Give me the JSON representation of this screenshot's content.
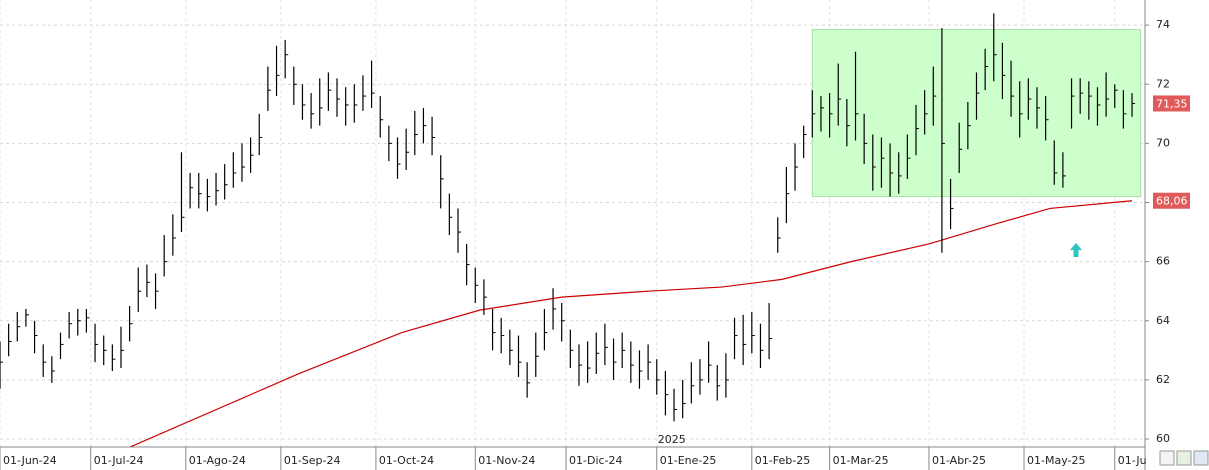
{
  "chart_data": {
    "type": "ohlc",
    "color": "#000000",
    "x": [
      0,
      2,
      4,
      6,
      8,
      10,
      12,
      14,
      16,
      18,
      20,
      22,
      24,
      26,
      28,
      30,
      32,
      34,
      36,
      38,
      40,
      42,
      44,
      46,
      48,
      50,
      52,
      54,
      56,
      58,
      60,
      62,
      64,
      66,
      68,
      70,
      72,
      74,
      76,
      78,
      80,
      82,
      84,
      86,
      88,
      90,
      92,
      94,
      96,
      98,
      100,
      102,
      104,
      106,
      108,
      110,
      112,
      114,
      116,
      118,
      120,
      122,
      124,
      126,
      128,
      130,
      132,
      134,
      136,
      138,
      140,
      142,
      144,
      146,
      148,
      150,
      152,
      154,
      156,
      158,
      160,
      162,
      164,
      166,
      168,
      170,
      172,
      174,
      176,
      178,
      180,
      182,
      184,
      186,
      188,
      190,
      192,
      194,
      196,
      198,
      200,
      202,
      204,
      206,
      208,
      210,
      212,
      214,
      216,
      218,
      220,
      222,
      224,
      226,
      228,
      230,
      232,
      234,
      236,
      238,
      240,
      242,
      244,
      246,
      248,
      250,
      252,
      254,
      256,
      258,
      260,
      262
    ],
    "high": [
      63.3,
      63.9,
      64.3,
      64.4,
      64.0,
      63.2,
      62.8,
      63.6,
      64.3,
      64.4,
      64.4,
      63.9,
      63.5,
      63.2,
      63.8,
      64.5,
      65.8,
      65.9,
      65.6,
      66.9,
      67.6,
      69.7,
      69.0,
      69.0,
      68.8,
      69.0,
      69.3,
      69.7,
      70.0,
      70.2,
      71.0,
      72.6,
      73.3,
      73.5,
      72.6,
      72.0,
      71.7,
      72.2,
      72.4,
      72.2,
      71.9,
      72.0,
      72.3,
      72.8,
      71.6,
      70.6,
      70.2,
      70.5,
      71.1,
      71.2,
      70.9,
      69.6,
      68.3,
      67.8,
      66.6,
      65.8,
      65.4,
      64.4,
      64.1,
      63.7,
      63.5,
      62.6,
      63.6,
      64.4,
      65.1,
      64.6,
      63.7,
      63.2,
      63.3,
      63.6,
      63.9,
      63.4,
      63.6,
      63.3,
      63.0,
      63.2,
      62.7,
      62.3,
      61.7,
      62.0,
      62.6,
      62.7,
      63.3,
      62.5,
      62.9,
      64.1,
      64.2,
      64.3,
      63.9,
      64.6,
      67.5,
      69.2,
      70.0,
      70.6,
      71.8,
      71.6,
      71.7,
      72.7,
      71.5,
      73.1,
      71.0,
      70.3,
      70.2,
      70.0,
      69.7,
      70.3,
      71.3,
      71.8,
      72.6,
      73.9,
      68.8,
      70.7,
      71.4,
      72.4,
      73.2,
      74.4,
      73.4,
      72.8,
      72.1,
      72.2,
      71.9,
      71.6,
      70.1,
      69.7,
      72.2,
      72.2,
      72.1,
      71.9,
      72.4,
      72.0,
      71.8,
      71.7
    ],
    "low": [
      61.7,
      62.8,
      63.3,
      63.8,
      62.9,
      62.1,
      61.9,
      62.7,
      63.4,
      63.5,
      63.6,
      62.6,
      62.5,
      62.3,
      62.4,
      63.3,
      64.3,
      64.8,
      64.4,
      65.5,
      66.2,
      67.0,
      67.8,
      67.8,
      67.7,
      67.9,
      68.1,
      68.5,
      68.7,
      69.0,
      69.6,
      71.1,
      71.6,
      72.2,
      71.3,
      70.8,
      70.5,
      70.6,
      71.1,
      70.9,
      70.6,
      70.7,
      71.1,
      71.2,
      70.2,
      69.4,
      68.8,
      69.1,
      69.6,
      70.0,
      69.6,
      67.8,
      66.9,
      66.3,
      65.2,
      64.6,
      64.2,
      63.0,
      62.9,
      62.5,
      62.1,
      61.4,
      62.1,
      63.0,
      63.7,
      63.3,
      62.4,
      61.8,
      61.9,
      62.2,
      62.5,
      62.0,
      62.4,
      61.9,
      61.7,
      62.0,
      61.5,
      60.8,
      60.6,
      60.7,
      61.2,
      61.5,
      61.9,
      61.3,
      61.4,
      62.7,
      62.5,
      62.9,
      62.4,
      62.7,
      66.3,
      67.3,
      68.4,
      69.5,
      70.2,
      70.4,
      70.2,
      70.6,
      69.9,
      70.1,
      69.3,
      68.4,
      68.5,
      68.2,
      68.3,
      68.8,
      69.6,
      70.3,
      70.6,
      66.3,
      67.1,
      69.0,
      69.8,
      70.8,
      71.8,
      72.1,
      71.5,
      70.9,
      70.2,
      70.8,
      70.5,
      70.1,
      68.6,
      68.5,
      70.5,
      71.0,
      70.8,
      70.6,
      70.9,
      71.2,
      70.5,
      70.9
    ],
    "close": [
      62.6,
      63.3,
      63.8,
      64.2,
      63.5,
      62.6,
      62.3,
      63.2,
      63.9,
      64.0,
      64.1,
      63.2,
      63.0,
      62.7,
      63.0,
      63.9,
      65.0,
      65.3,
      65.0,
      66.0,
      66.8,
      67.5,
      68.5,
      68.3,
      68.2,
      68.4,
      68.6,
      69.0,
      69.2,
      69.6,
      70.2,
      71.8,
      72.3,
      73.0,
      72.0,
      71.3,
      71.0,
      71.2,
      71.8,
      71.5,
      71.3,
      71.3,
      71.6,
      71.7,
      70.8,
      70.0,
      69.3,
      69.7,
      70.3,
      70.6,
      70.2,
      68.8,
      67.5,
      67.0,
      65.9,
      65.2,
      64.8,
      63.6,
      63.5,
      63.0,
      62.6,
      61.9,
      62.8,
      63.6,
      64.4,
      64.0,
      63.0,
      62.5,
      62.4,
      62.9,
      63.1,
      62.6,
      63.0,
      62.5,
      62.3,
      62.6,
      62.0,
      61.5,
      61.0,
      61.2,
      61.8,
      62.0,
      62.5,
      61.8,
      62.0,
      63.5,
      63.2,
      63.5,
      63.0,
      63.4,
      66.8,
      68.3,
      69.2,
      70.3,
      71.0,
      71.2,
      71.0,
      71.5,
      70.6,
      71.0,
      70.0,
      69.2,
      69.5,
      69.0,
      68.9,
      69.5,
      70.5,
      71.0,
      71.6,
      70.0,
      67.8,
      69.8,
      70.6,
      71.7,
      72.6,
      73.0,
      72.3,
      71.6,
      71.0,
      71.5,
      71.2,
      70.8,
      69.0,
      68.9,
      71.6,
      71.7,
      71.6,
      71.3,
      71.5,
      71.8,
      71.0,
      71.35
    ],
    "overlays": [
      {
        "type": "line",
        "color": "#cc0000",
        "x": [
          29,
          69,
          93,
          111,
          130,
          150,
          167,
          181,
          197,
          215,
          231,
          243,
          262
        ],
        "values": [
          59.66,
          62.2,
          63.6,
          64.36,
          64.8,
          65.0,
          65.14,
          65.4,
          66.0,
          66.6,
          67.3,
          67.8,
          68.06
        ]
      }
    ],
    "box": {
      "x": [
        188,
        264
      ],
      "y": [
        68.2,
        73.85
      ],
      "color": "#ccffcc"
    },
    "price_tags": [
      {
        "value": 71.35,
        "label": "71,35",
        "color": "#e05a5a"
      },
      {
        "value": 68.06,
        "label": "68,06",
        "color": "#e05a5a"
      }
    ],
    "annotations": [
      {
        "text": "2025",
        "x": 152
      }
    ],
    "xlim": [
      0,
      265
    ],
    "ylim": [
      59.73,
      74.85
    ],
    "yticks": [
      60,
      62,
      64,
      66,
      68,
      70,
      72,
      74
    ],
    "xticks": [
      {
        "value": 0,
        "label": "01-Jun-24"
      },
      {
        "value": 21,
        "label": "01-Jul-24"
      },
      {
        "value": 43,
        "label": "01-Ago-24"
      },
      {
        "value": 65,
        "label": "01-Sep-24"
      },
      {
        "value": 87,
        "label": "01-Oct-24"
      },
      {
        "value": 110,
        "label": "01-Nov-24"
      },
      {
        "value": 131,
        "label": "01-Dic-24"
      },
      {
        "value": 152,
        "label": "01-Ene-25"
      },
      {
        "value": 174,
        "label": "01-Feb-25"
      },
      {
        "value": 192,
        "label": "01-Mar-25"
      },
      {
        "value": 215,
        "label": "01-Abr-25"
      },
      {
        "value": 237,
        "label": "01-May-25"
      },
      {
        "value": 258,
        "label": "01-Ju"
      }
    ],
    "grid": true
  }
}
